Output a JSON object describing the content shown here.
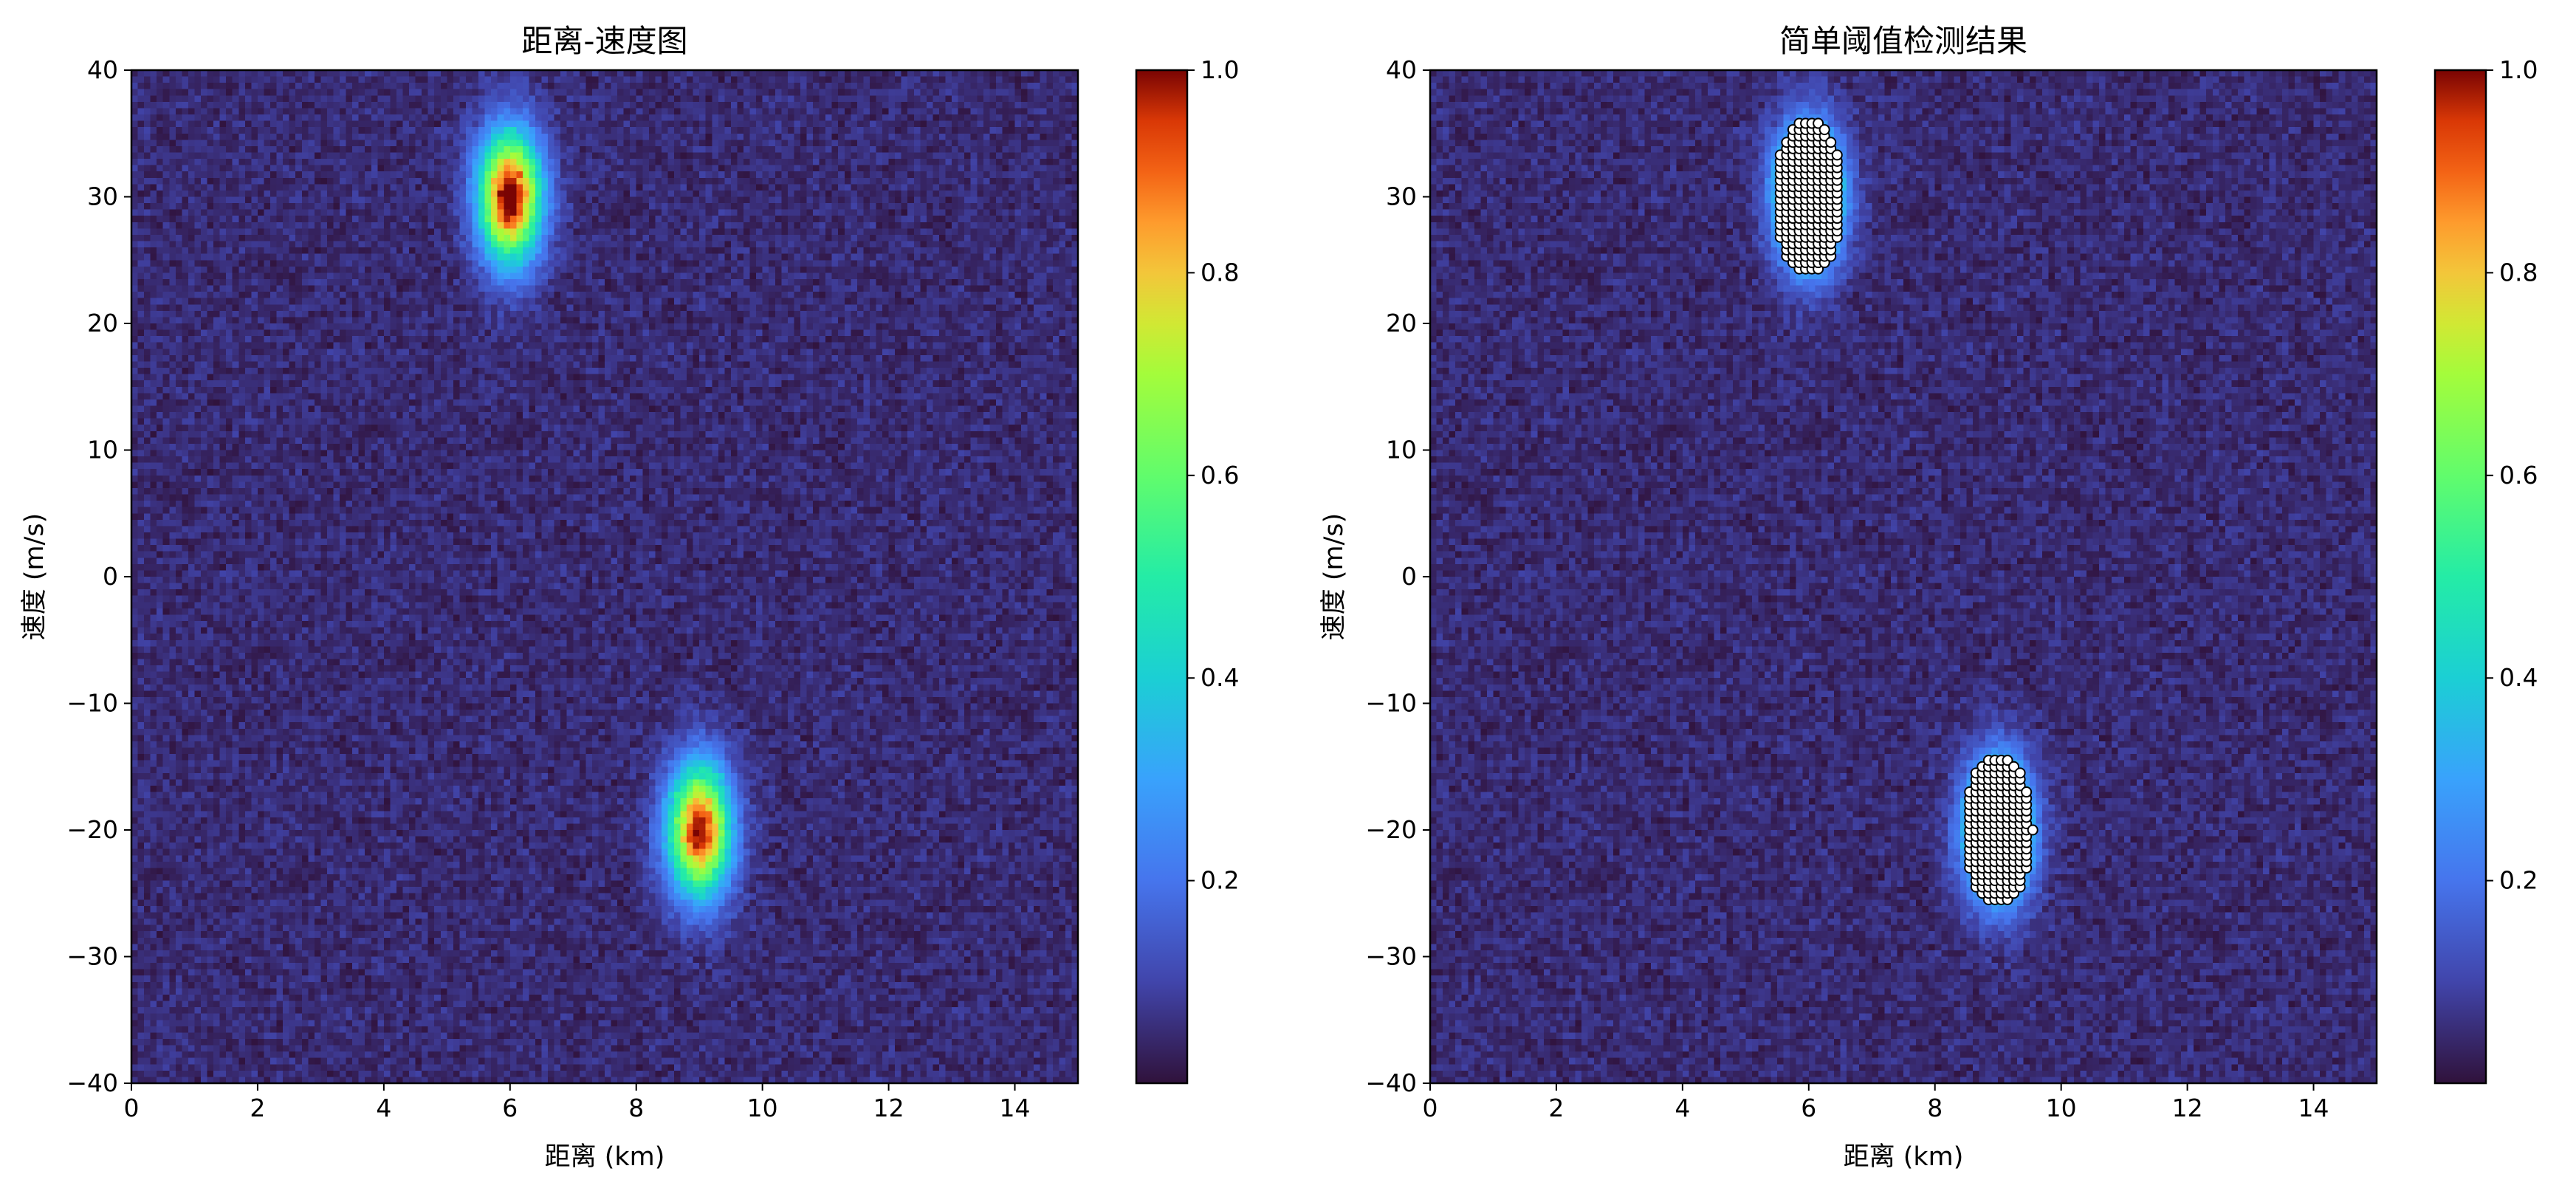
{
  "chart_data": [
    {
      "type": "heatmap",
      "title": "距离-速度图",
      "xlabel": "距离 (km)",
      "ylabel": "速度 (m/s)",
      "xlim": [
        0,
        15
      ],
      "ylim": [
        -40,
        40
      ],
      "xticks": [
        "0",
        "2",
        "4",
        "6",
        "8",
        "10",
        "12",
        "14"
      ],
      "yticks": [
        "40",
        "30",
        "20",
        "10",
        "0",
        "−10",
        "−20",
        "−30",
        "−40"
      ],
      "colormap": "turbo",
      "colorbar": {
        "range": [
          0,
          1.0
        ],
        "ticks": [
          "1.0",
          "0.8",
          "0.6",
          "0.4",
          "0.2"
        ]
      },
      "background_level": 0.05,
      "targets": [
        {
          "range_km": 6,
          "velocity_mps": 30,
          "peak": 1.0
        },
        {
          "range_km": 9,
          "velocity_mps": -20,
          "peak": 0.95
        }
      ],
      "grid": false
    },
    {
      "type": "heatmap",
      "title": "简单阈值检测结果",
      "xlabel": "距离 (km)",
      "ylabel": "速度 (m/s)",
      "xlim": [
        0,
        15
      ],
      "ylim": [
        -40,
        40
      ],
      "xticks": [
        "0",
        "2",
        "4",
        "6",
        "8",
        "10",
        "12",
        "14"
      ],
      "yticks": [
        "40",
        "30",
        "20",
        "10",
        "0",
        "−10",
        "−20",
        "−30",
        "−40"
      ],
      "colormap": "turbo",
      "colorbar": {
        "range": [
          0,
          1.0
        ],
        "ticks": [
          "1.0",
          "0.8",
          "0.6",
          "0.4",
          "0.2"
        ]
      },
      "background_level": 0.05,
      "targets": [
        {
          "range_km": 6,
          "velocity_mps": 30,
          "peak": 1.0
        },
        {
          "range_km": 9,
          "velocity_mps": -20,
          "peak": 0.95
        }
      ],
      "detections": [
        {
          "range_km": 6,
          "velocity_mps": 30,
          "range_halfwidth_km": 0.55,
          "velocity_halfwidth_mps": 6.2
        },
        {
          "range_km": 9,
          "velocity_mps": -20,
          "range_halfwidth_km": 0.55,
          "velocity_halfwidth_mps": 6.0
        }
      ],
      "detection_marker": {
        "fill": "#ffffff",
        "edge": "#000000"
      },
      "grid": false
    }
  ]
}
